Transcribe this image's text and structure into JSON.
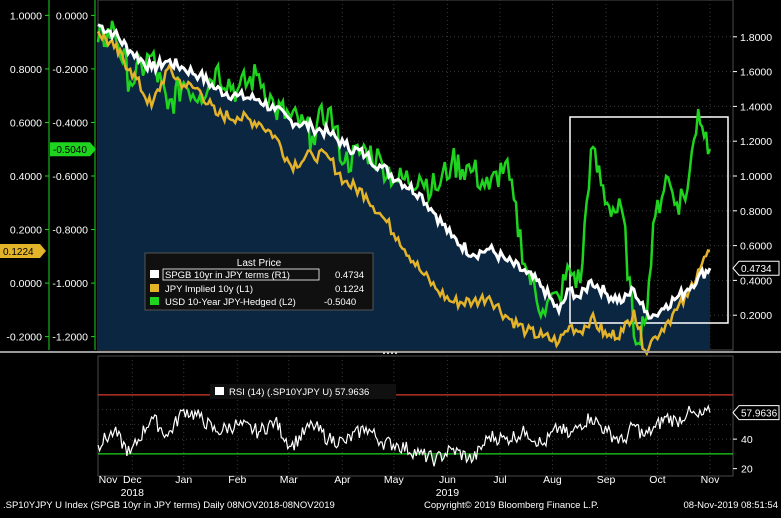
{
  "chart_data": {
    "type": "line",
    "legend": {
      "title": "Last Price",
      "placement": "bottom-center",
      "entries": [
        {
          "name": "SPGB 10yr in JPY terms  (R1)",
          "value": "0.4734",
          "color": "#ffffff"
        },
        {
          "name": "JPY Implied 10y  (L1)",
          "value": "0.1224",
          "color": "#e3b32a"
        },
        {
          "name": "USD 10-Year JPY-Hedged  (L2)",
          "value": "-0.5040",
          "color": "#1ed41e"
        }
      ]
    },
    "axes": {
      "left_outer": {
        "ticks": [
          "1.0000",
          "0.8000",
          "0.6000",
          "0.4000",
          "0.2000",
          "0.0000",
          "-0.2000"
        ],
        "range": [
          -0.25,
          1.05
        ]
      },
      "left_inner": {
        "ticks": [
          "0.0000",
          "-0.2000",
          "-0.4000",
          "-0.6000",
          "-0.8000",
          "-1.0000",
          "-1.2000"
        ],
        "range": [
          -1.25,
          0.05
        ]
      },
      "right": {
        "ticks": [
          "1.8000",
          "1.6000",
          "1.4000",
          "1.2000",
          "1.0000",
          "0.8000",
          "0.6000",
          "0.4000",
          "0.2000"
        ],
        "range": [
          0.0,
          2.0
        ]
      },
      "rsi": {
        "ticks": [
          "40",
          "20"
        ],
        "range": [
          15,
          95
        ],
        "overbought": 70,
        "oversold": 30
      }
    },
    "tags": {
      "left_outer": "0.1224",
      "left_inner": "-0.5040",
      "right": "0.4734",
      "rsi": "57.9636"
    },
    "x_labels": [
      {
        "label": "Nov",
        "t": 0
      },
      {
        "label": "Dec",
        "t": 0.64
      },
      {
        "label": "Jan",
        "t": 1.6
      },
      {
        "label": "Feb",
        "t": 2.6
      },
      {
        "label": "Mar",
        "t": 3.56
      },
      {
        "label": "Apr",
        "t": 4.56
      },
      {
        "label": "May",
        "t": 5.52
      },
      {
        "label": "Jun",
        "t": 6.52
      },
      {
        "label": "Jul",
        "t": 7.5
      },
      {
        "label": "Aug",
        "t": 8.48
      },
      {
        "label": "Sep",
        "t": 9.48
      },
      {
        "label": "Oct",
        "t": 10.44
      },
      {
        "label": "Nov",
        "t": 11.42
      }
    ],
    "year_labels": [
      {
        "label": "2018",
        "t": 0.64
      },
      {
        "label": "2019",
        "t": 6.52
      }
    ],
    "series_points": {
      "white_R1": [
        [
          0,
          1.87
        ],
        [
          0.3,
          1.82
        ],
        [
          0.6,
          1.72
        ],
        [
          1.0,
          1.62
        ],
        [
          1.3,
          1.66
        ],
        [
          1.6,
          1.62
        ],
        [
          1.9,
          1.58
        ],
        [
          2.2,
          1.5
        ],
        [
          2.6,
          1.46
        ],
        [
          3.0,
          1.44
        ],
        [
          3.3,
          1.38
        ],
        [
          3.6,
          1.32
        ],
        [
          4.0,
          1.28
        ],
        [
          4.3,
          1.25
        ],
        [
          4.6,
          1.18
        ],
        [
          5.0,
          1.12
        ],
        [
          5.3,
          1.05
        ],
        [
          5.6,
          0.98
        ],
        [
          6.0,
          0.9
        ],
        [
          6.3,
          0.78
        ],
        [
          6.6,
          0.65
        ],
        [
          7.0,
          0.55
        ],
        [
          7.3,
          0.58
        ],
        [
          7.6,
          0.52
        ],
        [
          8.0,
          0.44
        ],
        [
          8.3,
          0.36
        ],
        [
          8.6,
          0.22
        ],
        [
          8.8,
          0.35
        ],
        [
          9.0,
          0.3
        ],
        [
          9.2,
          0.4
        ],
        [
          9.5,
          0.32
        ],
        [
          9.8,
          0.28
        ],
        [
          10.0,
          0.35
        ],
        [
          10.2,
          0.22
        ],
        [
          10.4,
          0.2
        ],
        [
          10.6,
          0.26
        ],
        [
          10.8,
          0.3
        ],
        [
          11.0,
          0.35
        ],
        [
          11.2,
          0.42
        ],
        [
          11.42,
          0.47
        ]
      ],
      "gold_L1": [
        [
          0,
          0.94
        ],
        [
          0.3,
          0.88
        ],
        [
          0.6,
          0.8
        ],
        [
          1.0,
          0.66
        ],
        [
          1.3,
          0.8
        ],
        [
          1.6,
          0.74
        ],
        [
          1.9,
          0.72
        ],
        [
          2.2,
          0.63
        ],
        [
          2.6,
          0.62
        ],
        [
          3.0,
          0.6
        ],
        [
          3.3,
          0.55
        ],
        [
          3.6,
          0.44
        ],
        [
          4.0,
          0.48
        ],
        [
          4.3,
          0.47
        ],
        [
          4.6,
          0.38
        ],
        [
          5.0,
          0.33
        ],
        [
          5.3,
          0.25
        ],
        [
          5.6,
          0.17
        ],
        [
          6.0,
          0.05
        ],
        [
          6.3,
          -0.02
        ],
        [
          6.6,
          -0.07
        ],
        [
          7.0,
          -0.07
        ],
        [
          7.3,
          -0.05
        ],
        [
          7.6,
          -0.12
        ],
        [
          8.0,
          -0.18
        ],
        [
          8.3,
          -0.2
        ],
        [
          8.6,
          -0.22
        ],
        [
          8.8,
          -0.16
        ],
        [
          9.0,
          -0.18
        ],
        [
          9.2,
          -0.13
        ],
        [
          9.5,
          -0.2
        ],
        [
          9.8,
          -0.18
        ],
        [
          10.0,
          -0.1
        ],
        [
          10.2,
          -0.25
        ],
        [
          10.4,
          -0.2
        ],
        [
          10.6,
          -0.15
        ],
        [
          10.8,
          -0.1
        ],
        [
          11.0,
          -0.05
        ],
        [
          11.2,
          0.05
        ],
        [
          11.42,
          0.12
        ]
      ],
      "green_L2": [
        [
          0,
          -0.1
        ],
        [
          0.3,
          -0.05
        ],
        [
          0.6,
          -0.25
        ],
        [
          1.0,
          -0.15
        ],
        [
          1.3,
          -0.35
        ],
        [
          1.6,
          -0.25
        ],
        [
          1.9,
          -0.3
        ],
        [
          2.2,
          -0.2
        ],
        [
          2.6,
          -0.28
        ],
        [
          3.0,
          -0.22
        ],
        [
          3.3,
          -0.35
        ],
        [
          3.6,
          -0.38
        ],
        [
          4.0,
          -0.45
        ],
        [
          4.3,
          -0.35
        ],
        [
          4.6,
          -0.55
        ],
        [
          5.0,
          -0.5
        ],
        [
          5.3,
          -0.55
        ],
        [
          5.6,
          -0.62
        ],
        [
          6.0,
          -0.6
        ],
        [
          6.3,
          -0.65
        ],
        [
          6.6,
          -0.55
        ],
        [
          7.0,
          -0.58
        ],
        [
          7.3,
          -0.65
        ],
        [
          7.6,
          -0.55
        ],
        [
          8.0,
          -0.95
        ],
        [
          8.3,
          -1.1
        ],
        [
          8.6,
          -1.05
        ],
        [
          8.8,
          -0.95
        ],
        [
          9.0,
          -1.0
        ],
        [
          9.2,
          -0.5
        ],
        [
          9.5,
          -0.7
        ],
        [
          9.8,
          -0.75
        ],
        [
          10.0,
          -1.2
        ],
        [
          10.2,
          -1.15
        ],
        [
          10.4,
          -0.75
        ],
        [
          10.6,
          -0.6
        ],
        [
          10.8,
          -0.7
        ],
        [
          11.0,
          -0.65
        ],
        [
          11.2,
          -0.35
        ],
        [
          11.42,
          -0.5
        ]
      ],
      "rsi": [
        [
          0,
          36
        ],
        [
          0.3,
          45
        ],
        [
          0.6,
          30
        ],
        [
          1.0,
          55
        ],
        [
          1.3,
          42
        ],
        [
          1.6,
          60
        ],
        [
          1.9,
          55
        ],
        [
          2.2,
          45
        ],
        [
          2.6,
          50
        ],
        [
          3.0,
          45
        ],
        [
          3.3,
          52
        ],
        [
          3.6,
          35
        ],
        [
          4.0,
          50
        ],
        [
          4.3,
          40
        ],
        [
          4.6,
          38
        ],
        [
          5.0,
          48
        ],
        [
          5.3,
          38
        ],
        [
          5.6,
          36
        ],
        [
          6.0,
          30
        ],
        [
          6.3,
          26
        ],
        [
          6.6,
          33
        ],
        [
          7.0,
          26
        ],
        [
          7.3,
          42
        ],
        [
          7.6,
          40
        ],
        [
          8.0,
          45
        ],
        [
          8.3,
          36
        ],
        [
          8.6,
          48
        ],
        [
          8.8,
          42
        ],
        [
          9.0,
          50
        ],
        [
          9.2,
          55
        ],
        [
          9.5,
          45
        ],
        [
          9.8,
          38
        ],
        [
          10.0,
          50
        ],
        [
          10.2,
          42
        ],
        [
          10.4,
          48
        ],
        [
          10.6,
          55
        ],
        [
          10.8,
          52
        ],
        [
          11.0,
          58
        ],
        [
          11.2,
          55
        ],
        [
          11.42,
          58
        ]
      ]
    },
    "rsi_legend": "RSI (14) (.SP10YJPY U) 57.9636"
  },
  "footer": {
    "left": ".SP10YJPY U Index (SPGB 10yr in JPY terms)  Daily 08NOV2018-08NOV2019",
    "center": "Copyright© 2019 Bloomberg Finance L.P.",
    "right": "08-Nov-2019 08:51:54"
  }
}
